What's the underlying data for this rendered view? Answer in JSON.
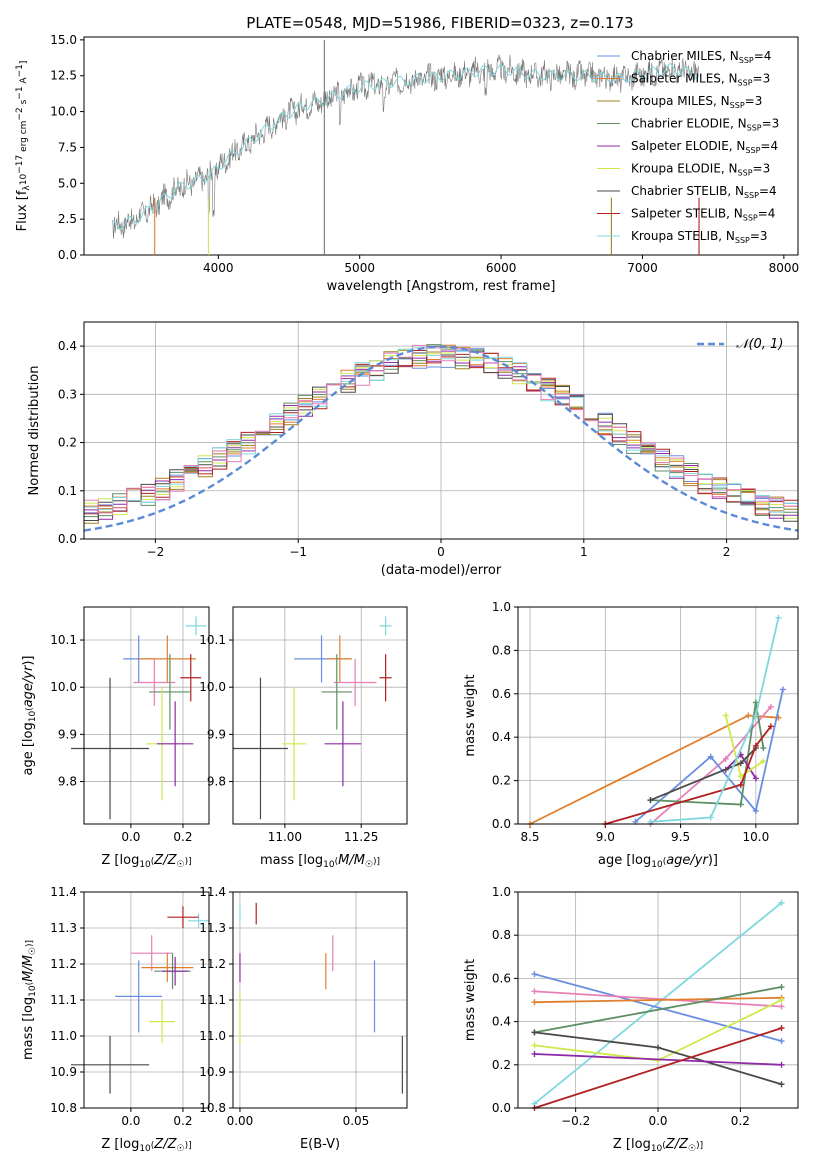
{
  "figure": {
    "title": "PLATE=0548, MJD=51986, FIBERID=0323, z=0.173"
  },
  "colors": {
    "chabrier_miles": "#6a8fe0",
    "salpeter_miles": "#e07f2e",
    "kroupa_miles": "#a0801f",
    "chabrier_elodie": "#5e8f64",
    "salpeter_elodie": "#8e2aa6",
    "kroupa_elodie": "#cfe84a",
    "chabrier_stelib": "#4a4a4a",
    "salpeter_stelib": "#b02020",
    "kroupa_stelib": "#7fd8dd",
    "extra_pink": "#e77fb8"
  },
  "chart_data": [
    {
      "id": "spectrum",
      "type": "line",
      "title": "PLATE=0548, MJD=51986, FIBERID=0323, z=0.173",
      "xlabel": "wavelength [Angstrom, rest frame]",
      "ylabel": "Flux [f_λ 10^-17 erg cm^-2 s^-1 A^-1]",
      "xlim": [
        3050,
        8100
      ],
      "ylim": [
        0,
        15.2
      ],
      "xticks": [
        "4000",
        "5000",
        "6000",
        "7000",
        "8000"
      ],
      "yticks": [
        "0.0",
        "2.5",
        "5.0",
        "7.5",
        "10.0",
        "12.5",
        "15.0"
      ],
      "grid": false,
      "legend_position": "top-right",
      "legend": [
        "Chabrier MILES, N_SSP=4",
        "Salpeter MILES, N_SSP=3",
        "Kroupa MILES, N_SSP=3",
        "Chabrier ELODIE, N_SSP=3",
        "Salpeter ELODIE, N_SSP=4",
        "Kroupa ELODIE, N_SSP=3",
        "Chabrier STELIB, N_SSP=4",
        "Salpeter STELIB, N_SSP=4",
        "Kroupa STELIB, N_SSP=3"
      ],
      "continuum_points": [
        [
          3250,
          2.0
        ],
        [
          3400,
          2.4
        ],
        [
          3550,
          3.4
        ],
        [
          3700,
          4.6
        ],
        [
          3850,
          5.2
        ],
        [
          3950,
          5.6
        ],
        [
          4050,
          6.6
        ],
        [
          4150,
          7.4
        ],
        [
          4300,
          8.5
        ],
        [
          4450,
          9.6
        ],
        [
          4600,
          10.4
        ],
        [
          4750,
          10.8
        ],
        [
          4900,
          11.4
        ],
        [
          5050,
          11.8
        ],
        [
          5200,
          12.0
        ],
        [
          5350,
          12.2
        ],
        [
          5500,
          12.4
        ],
        [
          5700,
          12.6
        ],
        [
          5900,
          12.9
        ],
        [
          6050,
          12.9
        ],
        [
          6200,
          12.6
        ],
        [
          6400,
          12.5
        ],
        [
          6600,
          12.5
        ],
        [
          6750,
          12.4
        ],
        [
          6850,
          12.3
        ],
        [
          7000,
          12.6
        ],
        [
          7200,
          13.0
        ],
        [
          7400,
          12.6
        ]
      ]
    },
    {
      "id": "residuals",
      "type": "histogram",
      "xlabel": "(data-model)/error",
      "ylabel": "Normed distribution",
      "xlim": [
        -2.5,
        2.5
      ],
      "ylim": [
        0,
        0.45
      ],
      "xticks": [
        "−2",
        "−1",
        "0",
        "1",
        "2"
      ],
      "yticks": [
        "0.0",
        "0.1",
        "0.2",
        "0.3",
        "0.4"
      ],
      "grid": true,
      "legend": [
        "𝒩(0, 1)"
      ],
      "bin_width": 0.1,
      "reference_curve": "normal pdf mu=0 sigma=1"
    },
    {
      "id": "age_vs_Z",
      "type": "scatter",
      "xlabel": "Z [log10(Z/Z☉)]",
      "ylabel": "age  [log10(age/yr)]",
      "xlim": [
        -0.18,
        0.3
      ],
      "ylim": [
        9.71,
        10.17
      ],
      "xticks": [
        {
          "v": 0.0,
          "t": "0.0"
        },
        {
          "v": 0.2,
          "t": "0.2"
        }
      ],
      "yticks": [
        {
          "v": 9.8,
          "t": "9.8"
        },
        {
          "v": 9.9,
          "t": "9.9"
        },
        {
          "v": 10.0,
          "t": "10.0"
        },
        {
          "v": 10.1,
          "t": "10.1"
        }
      ],
      "points": [
        {
          "s": "kroupa_stelib",
          "x": 0.25,
          "xe": 0.04,
          "y": 10.13,
          "ye": 0.02
        },
        {
          "s": "chabrier_miles",
          "x": 0.03,
          "xe": 0.06,
          "y": 10.06,
          "ye": 0.05
        },
        {
          "s": "salpeter_miles",
          "x": 0.14,
          "xe": 0.11,
          "y": 10.06,
          "ye": 0.05
        },
        {
          "s": "extra_pink",
          "x": 0.09,
          "xe": 0.08,
          "y": 10.01,
          "ye": 0.05
        },
        {
          "s": "salpeter_stelib",
          "x": 0.23,
          "xe": 0.04,
          "y": 10.02,
          "ye": 0.05
        },
        {
          "s": "chabrier_elodie",
          "x": 0.15,
          "xe": 0.08,
          "y": 9.99,
          "ye": 0.08
        },
        {
          "s": "kroupa_elodie",
          "x": 0.12,
          "xe": 0.06,
          "y": 9.88,
          "ye": 0.12
        },
        {
          "s": "salpeter_elodie",
          "x": 0.17,
          "xe": 0.07,
          "y": 9.88,
          "ye": 0.09
        },
        {
          "s": "chabrier_stelib",
          "x": -0.08,
          "xe": 0.15,
          "y": 9.87,
          "ye": 0.15
        }
      ]
    },
    {
      "id": "age_vs_mass",
      "type": "scatter",
      "xlabel": "mass [log10(M/M☉)]",
      "ylabel": "",
      "xlim": [
        10.83,
        11.4
      ],
      "ylim": [
        9.71,
        10.17
      ],
      "xticks": [
        {
          "v": 11.0,
          "t": "11.00"
        },
        {
          "v": 11.25,
          "t": "11.25"
        }
      ],
      "yticks": [
        {
          "v": 9.8,
          "t": "9.8"
        },
        {
          "v": 9.9,
          "t": "9.9"
        },
        {
          "v": 10.0,
          "t": "10.0"
        },
        {
          "v": 10.1,
          "t": "10.1"
        }
      ],
      "points": [
        {
          "s": "kroupa_stelib",
          "x": 11.33,
          "xe": 0.02,
          "y": 10.13,
          "ye": 0.02
        },
        {
          "s": "chabrier_miles",
          "x": 11.12,
          "xe": 0.09,
          "y": 10.06,
          "ye": 0.05
        },
        {
          "s": "salpeter_miles",
          "x": 11.18,
          "xe": 0.04,
          "y": 10.06,
          "ye": 0.05
        },
        {
          "s": "extra_pink",
          "x": 11.23,
          "xe": 0.07,
          "y": 10.01,
          "ye": 0.05
        },
        {
          "s": "salpeter_stelib",
          "x": 11.33,
          "xe": 0.02,
          "y": 10.02,
          "ye": 0.05
        },
        {
          "s": "chabrier_elodie",
          "x": 11.17,
          "xe": 0.05,
          "y": 9.99,
          "ye": 0.08
        },
        {
          "s": "kroupa_elodie",
          "x": 11.03,
          "xe": 0.04,
          "y": 9.88,
          "ye": 0.12
        },
        {
          "s": "salpeter_elodie",
          "x": 11.19,
          "xe": 0.06,
          "y": 9.88,
          "ye": 0.09
        },
        {
          "s": "chabrier_stelib",
          "x": 10.92,
          "xe": 0.09,
          "y": 9.87,
          "ye": 0.15
        }
      ]
    },
    {
      "id": "weight_vs_age",
      "type": "line",
      "xlabel": "age  [log10(age/yr)]",
      "ylabel": "mass weight",
      "xlim": [
        8.42,
        10.28
      ],
      "ylim": [
        0,
        1.0
      ],
      "xticks": [
        {
          "v": 8.5,
          "t": "8.5"
        },
        {
          "v": 9.0,
          "t": "9.0"
        },
        {
          "v": 9.5,
          "t": "9.5"
        },
        {
          "v": 10.0,
          "t": "10.0"
        }
      ],
      "yticks": [
        {
          "v": 0,
          "t": "0.0"
        },
        {
          "v": 0.2,
          "t": "0.2"
        },
        {
          "v": 0.4,
          "t": "0.4"
        },
        {
          "v": 0.6,
          "t": "0.6"
        },
        {
          "v": 0.8,
          "t": "0.8"
        },
        {
          "v": 1.0,
          "t": "1.0"
        }
      ],
      "grid": true,
      "series": [
        {
          "s": "salpeter_miles",
          "pts": [
            [
              8.5,
              0.0
            ],
            [
              9.95,
              0.5
            ],
            [
              10.15,
              0.49
            ]
          ]
        },
        {
          "s": "extra_pink",
          "pts": [
            [
              9.3,
              0.0
            ],
            [
              9.8,
              0.3
            ],
            [
              10.1,
              0.54
            ]
          ]
        },
        {
          "s": "chabrier_miles",
          "pts": [
            [
              9.2,
              0.01
            ],
            [
              9.7,
              0.31
            ],
            [
              10.0,
              0.06
            ],
            [
              10.18,
              0.62
            ]
          ]
        },
        {
          "s": "chabrier_elodie",
          "pts": [
            [
              9.3,
              0.11
            ],
            [
              9.9,
              0.09
            ],
            [
              10.0,
              0.56
            ],
            [
              10.05,
              0.35
            ]
          ]
        },
        {
          "s": "salpeter_elodie",
          "pts": [
            [
              9.8,
              0.25
            ],
            [
              9.9,
              0.32
            ],
            [
              10.0,
              0.21
            ]
          ]
        },
        {
          "s": "kroupa_elodie",
          "pts": [
            [
              9.8,
              0.5
            ],
            [
              9.9,
              0.22
            ],
            [
              10.05,
              0.29
            ]
          ]
        },
        {
          "s": "chabrier_stelib",
          "pts": [
            [
              9.3,
              0.11
            ],
            [
              9.9,
              0.28
            ],
            [
              10.0,
              0.35
            ]
          ]
        },
        {
          "s": "salpeter_stelib",
          "pts": [
            [
              9.0,
              0.0
            ],
            [
              9.9,
              0.18
            ],
            [
              10.0,
              0.36
            ],
            [
              10.1,
              0.45
            ]
          ]
        },
        {
          "s": "kroupa_stelib",
          "pts": [
            [
              9.3,
              0.01
            ],
            [
              9.7,
              0.03
            ],
            [
              10.0,
              0.5
            ],
            [
              10.15,
              0.95
            ]
          ]
        }
      ]
    },
    {
      "id": "mass_vs_Z",
      "type": "scatter",
      "xlabel": "Z [log10(Z/Z☉)]",
      "ylabel": "mass [log10(M/M☉)]",
      "xlim": [
        -0.18,
        0.3
      ],
      "ylim": [
        10.8,
        11.4
      ],
      "xticks": [
        {
          "v": 0.0,
          "t": "0.0"
        },
        {
          "v": 0.2,
          "t": "0.2"
        }
      ],
      "yticks": [
        {
          "v": 10.8,
          "t": "10.8"
        },
        {
          "v": 10.9,
          "t": "10.9"
        },
        {
          "v": 11.0,
          "t": "11.0"
        },
        {
          "v": 11.1,
          "t": "11.1"
        },
        {
          "v": 11.2,
          "t": "11.2"
        },
        {
          "v": 11.3,
          "t": "11.3"
        },
        {
          "v": 11.4,
          "t": "11.4"
        }
      ],
      "points": [
        {
          "s": "kroupa_stelib",
          "x": 0.26,
          "xe": 0.04,
          "y": 11.32,
          "ye": 0.02
        },
        {
          "s": "salpeter_stelib",
          "x": 0.2,
          "xe": 0.06,
          "y": 11.33,
          "ye": 0.03
        },
        {
          "s": "extra_pink",
          "x": 0.08,
          "xe": 0.08,
          "y": 11.23,
          "ye": 0.05
        },
        {
          "s": "salpeter_miles",
          "x": 0.14,
          "xe": 0.1,
          "y": 11.19,
          "ye": 0.04
        },
        {
          "s": "chabrier_elodie",
          "x": 0.16,
          "xe": 0.07,
          "y": 11.18,
          "ye": 0.05
        },
        {
          "s": "salpeter_elodie",
          "x": 0.17,
          "xe": 0.05,
          "y": 11.18,
          "ye": 0.04
        },
        {
          "s": "chabrier_miles",
          "x": 0.03,
          "xe": 0.09,
          "y": 11.11,
          "ye": 0.1
        },
        {
          "s": "kroupa_elodie",
          "x": 0.12,
          "xe": 0.05,
          "y": 11.04,
          "ye": 0.06
        },
        {
          "s": "chabrier_stelib",
          "x": -0.08,
          "xe": 0.15,
          "y": 10.92,
          "ye": 0.08
        }
      ]
    },
    {
      "id": "mass_vs_ebv",
      "type": "scatter",
      "xlabel": "E(B-V)",
      "ylabel": "",
      "xlim": [
        -0.003,
        0.072
      ],
      "ylim": [
        10.8,
        11.4
      ],
      "xticks": [
        {
          "v": 0.0,
          "t": "0.00"
        },
        {
          "v": 0.05,
          "t": "0.05"
        }
      ],
      "yticks": [
        {
          "v": 10.8,
          "t": "10.8"
        },
        {
          "v": 10.9,
          "t": "10.9"
        },
        {
          "v": 11.0,
          "t": "11.0"
        },
        {
          "v": 11.1,
          "t": "11.1"
        },
        {
          "v": 11.2,
          "t": "11.2"
        },
        {
          "v": 11.3,
          "t": "11.3"
        },
        {
          "v": 11.4,
          "t": "11.4"
        }
      ],
      "points": [
        {
          "s": "kroupa_stelib",
          "x": 0.0,
          "xe": 0,
          "y": 11.34,
          "ye": 0.02
        },
        {
          "s": "salpeter_stelib",
          "x": 0.007,
          "xe": 0,
          "y": 11.34,
          "ye": 0.03
        },
        {
          "s": "salpeter_elodie",
          "x": 0.0,
          "xe": 0,
          "y": 11.19,
          "ye": 0.04
        },
        {
          "s": "kroupa_elodie",
          "x": 0.0,
          "xe": 0,
          "y": 11.05,
          "ye": 0.07
        },
        {
          "s": "extra_pink",
          "x": 0.04,
          "xe": 0,
          "y": 11.23,
          "ye": 0.05
        },
        {
          "s": "salpeter_miles",
          "x": 0.037,
          "xe": 0,
          "y": 11.18,
          "ye": 0.05
        },
        {
          "s": "chabrier_miles",
          "x": 0.058,
          "xe": 0,
          "y": 11.11,
          "ye": 0.1
        },
        {
          "s": "chabrier_stelib",
          "x": 0.07,
          "xe": 0,
          "y": 10.92,
          "ye": 0.08
        }
      ]
    },
    {
      "id": "weight_vs_Z",
      "type": "line",
      "xlabel": "Z [log10(Z/Z☉)]",
      "ylabel": "mass weight",
      "xlim": [
        -0.34,
        0.34
      ],
      "ylim": [
        0,
        1.0
      ],
      "xticks": [
        {
          "v": -0.2,
          "t": "−0.2"
        },
        {
          "v": 0.0,
          "t": "0.0"
        },
        {
          "v": 0.2,
          "t": "0.2"
        }
      ],
      "yticks": [
        {
          "v": 0,
          "t": "0.0"
        },
        {
          "v": 0.2,
          "t": "0.2"
        },
        {
          "v": 0.4,
          "t": "0.4"
        },
        {
          "v": 0.6,
          "t": "0.6"
        },
        {
          "v": 0.8,
          "t": "0.8"
        },
        {
          "v": 1.0,
          "t": "1.0"
        }
      ],
      "grid": true,
      "series": [
        {
          "s": "kroupa_stelib",
          "pts": [
            [
              -0.3,
              0.02
            ],
            [
              0.3,
              0.95
            ]
          ]
        },
        {
          "s": "chabrier_miles",
          "pts": [
            [
              -0.3,
              0.62
            ],
            [
              0.3,
              0.31
            ]
          ]
        },
        {
          "s": "extra_pink",
          "pts": [
            [
              -0.3,
              0.54
            ],
            [
              0.3,
              0.47
            ]
          ]
        },
        {
          "s": "salpeter_miles",
          "pts": [
            [
              -0.3,
              0.49
            ],
            [
              0.3,
              0.51
            ]
          ]
        },
        {
          "s": "chabrier_elodie",
          "pts": [
            [
              -0.3,
              0.35
            ],
            [
              0.3,
              0.56
            ]
          ]
        },
        {
          "s": "kroupa_elodie",
          "pts": [
            [
              -0.3,
              0.29
            ],
            [
              0.0,
              0.22
            ],
            [
              0.3,
              0.5
            ]
          ]
        },
        {
          "s": "chabrier_stelib",
          "pts": [
            [
              -0.3,
              0.35
            ],
            [
              0.0,
              0.28
            ],
            [
              0.3,
              0.11
            ]
          ]
        },
        {
          "s": "salpeter_elodie",
          "pts": [
            [
              -0.3,
              0.25
            ],
            [
              0.3,
              0.2
            ]
          ]
        },
        {
          "s": "salpeter_stelib",
          "pts": [
            [
              -0.3,
              0.0
            ],
            [
              0.3,
              0.37
            ]
          ]
        }
      ]
    }
  ]
}
